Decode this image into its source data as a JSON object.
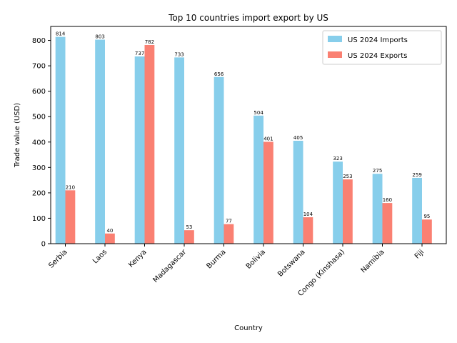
{
  "chart_data": {
    "type": "bar",
    "title": "Top 10 countries import export by US",
    "xlabel": "Country",
    "ylabel": "Trade value (USD)",
    "categories": [
      "Serbia",
      "Laos",
      "Kenya",
      "Madagascar",
      "Burma",
      "Bolivia",
      "Botswana",
      "Congo (Kinshasa)",
      "Namibia",
      "Fiji"
    ],
    "series": [
      {
        "name": "US 2024 Imports",
        "color": "#87ceeb",
        "values": [
          814,
          803,
          737,
          733,
          656,
          504,
          405,
          323,
          275,
          259
        ]
      },
      {
        "name": "US 2024 Exports",
        "color": "#fa8072",
        "values": [
          210,
          40,
          782,
          53,
          77,
          401,
          104,
          253,
          160,
          95
        ]
      }
    ],
    "ylim": [
      0,
      855
    ],
    "yticks": [
      0,
      100,
      200,
      300,
      400,
      500,
      600,
      700,
      800
    ],
    "grid": false,
    "legend_position": "top-right"
  }
}
